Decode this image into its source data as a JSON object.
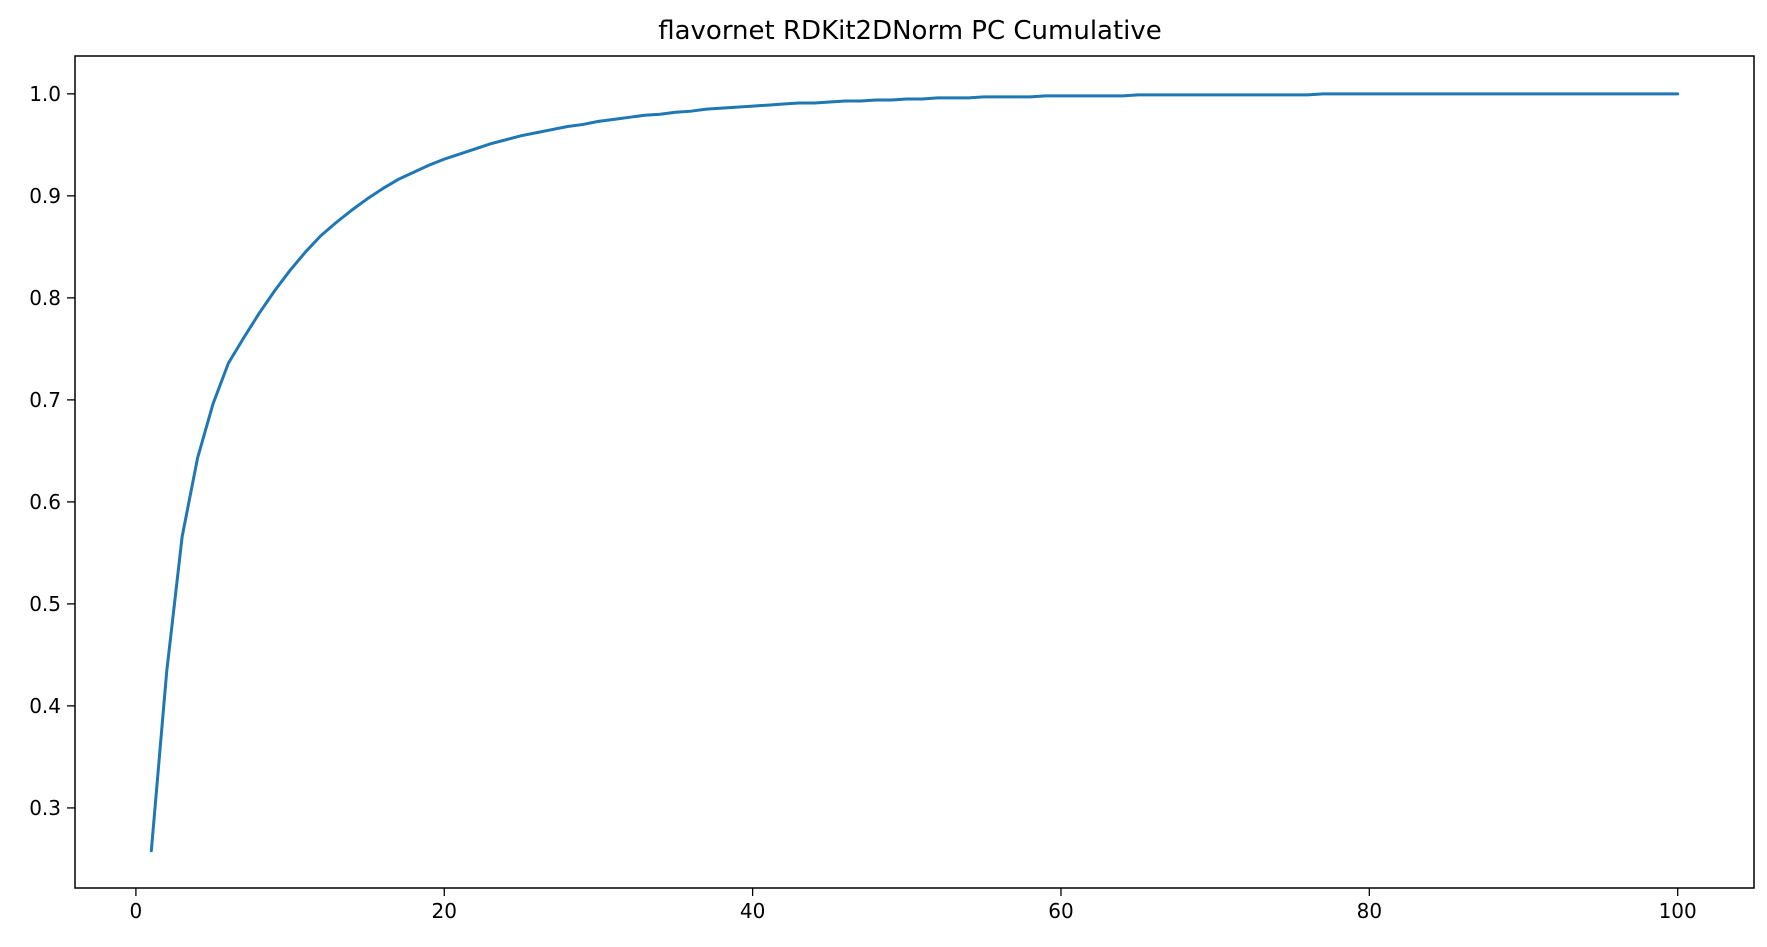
{
  "chart_data": {
    "type": "line",
    "title": "flavornet RDKit2DNorm PC Cumulative",
    "xlabel": "",
    "ylabel": "",
    "xlim": [
      -3.95,
      104.95
    ],
    "ylim": [
      0.2215,
      1.0371
    ],
    "x_ticks": [
      0,
      20,
      40,
      60,
      80,
      100
    ],
    "x_tick_labels": [
      "0",
      "20",
      "40",
      "60",
      "80",
      "100"
    ],
    "y_ticks": [
      0.3,
      0.4,
      0.5,
      0.6,
      0.7,
      0.8,
      0.9,
      1.0
    ],
    "y_tick_labels": [
      "0.3",
      "0.4",
      "0.5",
      "0.6",
      "0.7",
      "0.8",
      "0.9",
      "1.0"
    ],
    "grid": false,
    "legend": "none",
    "series": [
      {
        "color": "#1f77b4",
        "x": [
          1,
          2,
          3,
          4,
          5,
          6,
          7,
          8,
          9,
          10,
          11,
          12,
          13,
          14,
          15,
          16,
          17,
          18,
          19,
          20,
          21,
          22,
          23,
          24,
          25,
          26,
          27,
          28,
          29,
          30,
          31,
          32,
          33,
          34,
          35,
          36,
          37,
          38,
          39,
          40,
          41,
          42,
          43,
          44,
          45,
          46,
          47,
          48,
          49,
          50,
          51,
          52,
          53,
          54,
          55,
          56,
          57,
          58,
          59,
          60,
          61,
          62,
          63,
          64,
          65,
          66,
          67,
          68,
          69,
          70,
          71,
          72,
          73,
          74,
          75,
          76,
          77,
          78,
          79,
          80,
          81,
          82,
          83,
          84,
          85,
          86,
          87,
          88,
          89,
          90,
          91,
          92,
          93,
          94,
          95,
          96,
          97,
          98,
          99,
          100
        ],
        "y": [
          0.258,
          0.434,
          0.566,
          0.643,
          0.696,
          0.736,
          0.761,
          0.785,
          0.807,
          0.827,
          0.845,
          0.861,
          0.874,
          0.886,
          0.897,
          0.907,
          0.916,
          0.923,
          0.93,
          0.936,
          0.941,
          0.946,
          0.951,
          0.955,
          0.959,
          0.962,
          0.965,
          0.968,
          0.97,
          0.973,
          0.975,
          0.977,
          0.979,
          0.98,
          0.982,
          0.983,
          0.985,
          0.986,
          0.987,
          0.988,
          0.989,
          0.99,
          0.991,
          0.991,
          0.992,
          0.993,
          0.993,
          0.994,
          0.994,
          0.995,
          0.995,
          0.996,
          0.996,
          0.996,
          0.997,
          0.997,
          0.997,
          0.997,
          0.998,
          0.998,
          0.998,
          0.998,
          0.998,
          0.998,
          0.999,
          0.999,
          0.999,
          0.999,
          0.999,
          0.999,
          0.999,
          0.999,
          0.999,
          0.999,
          0.999,
          0.999,
          1.0,
          1.0,
          1.0,
          1.0,
          1.0,
          1.0,
          1.0,
          1.0,
          1.0,
          1.0,
          1.0,
          1.0,
          1.0,
          1.0,
          1.0,
          1.0,
          1.0,
          1.0,
          1.0,
          1.0,
          1.0,
          1.0,
          1.0,
          1.0
        ]
      }
    ]
  }
}
